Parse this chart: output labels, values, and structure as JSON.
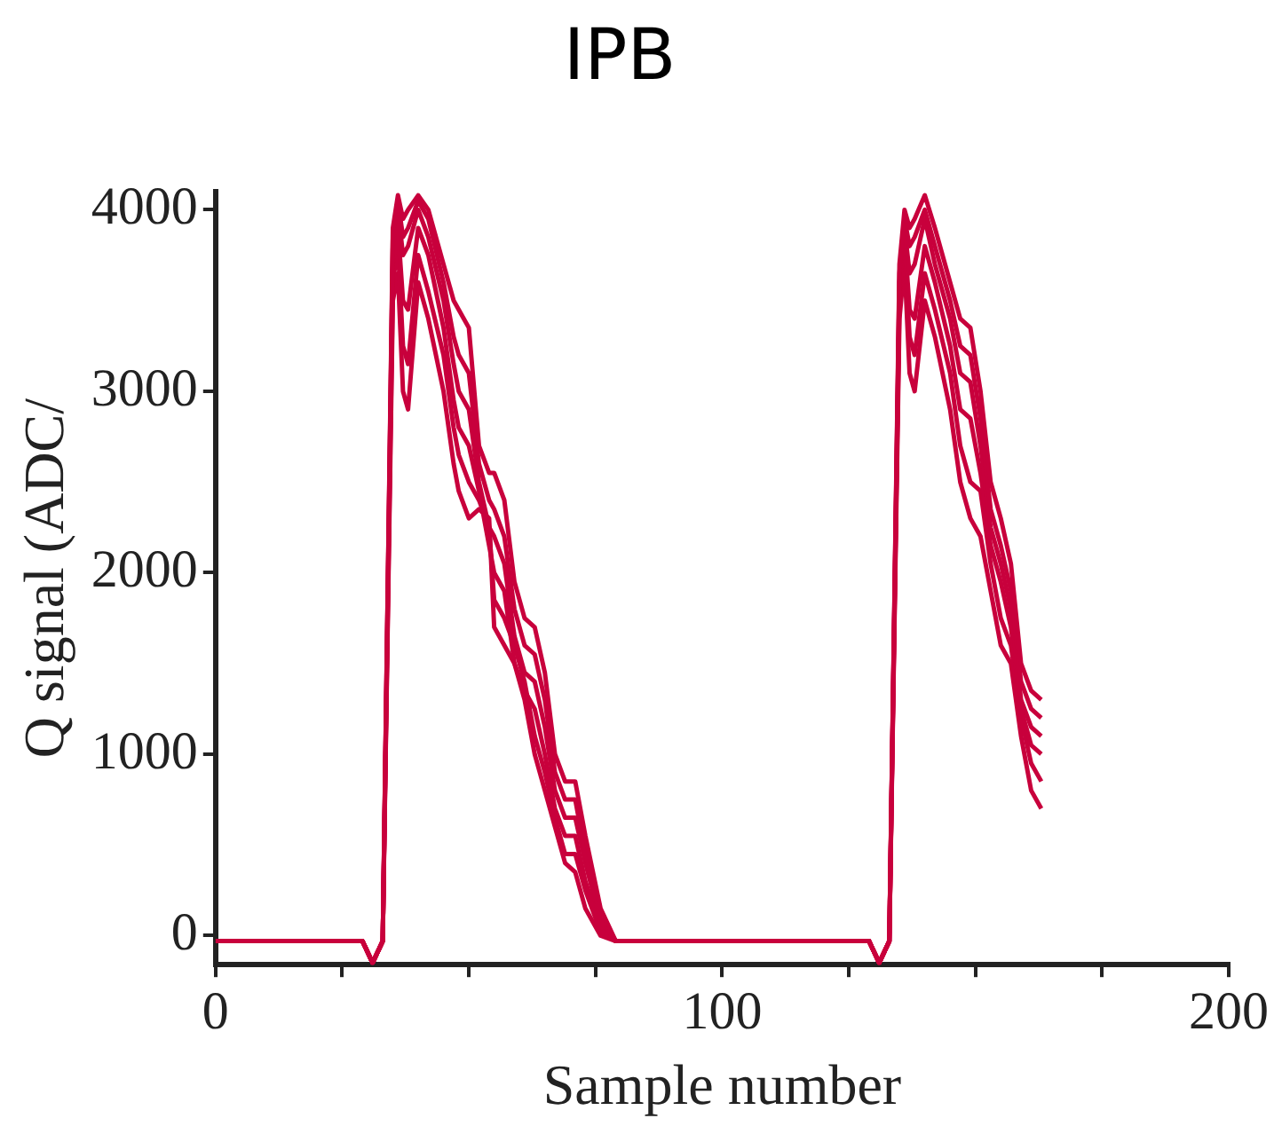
{
  "chart_data": {
    "type": "line",
    "title": "IPB",
    "xlabel": "Sample number",
    "ylabel": "Q signal (ADC/",
    "x": [
      0,
      29,
      31,
      33,
      35,
      36,
      37,
      38,
      40,
      42,
      45,
      47,
      48,
      50,
      52,
      54,
      55,
      57,
      59,
      61,
      63,
      65,
      67,
      69,
      71,
      73,
      76,
      79,
      129,
      131,
      133,
      135,
      136,
      137,
      138,
      140,
      142,
      145,
      147,
      149,
      151,
      153,
      155,
      157,
      159,
      161,
      163
    ],
    "series": [
      {
        "color": "#c8003c",
        "values": [
          -30,
          -30,
          -150,
          -30,
          3900,
          4080,
          3950,
          4000,
          4080,
          4000,
          3700,
          3500,
          3450,
          3350,
          2700,
          2550,
          2550,
          2400,
          1950,
          1750,
          1700,
          1450,
          1000,
          850,
          850,
          550,
          150,
          -30,
          -30,
          -150,
          -30,
          3700,
          4000,
          3900,
          3950,
          4080,
          3900,
          3600,
          3400,
          3350,
          3000,
          2500,
          2300,
          2050,
          1500,
          1350,
          1300
        ]
      },
      {
        "color": "#c8003c",
        "values": [
          -30,
          -30,
          -150,
          -30,
          3850,
          4050,
          3850,
          3900,
          4050,
          3950,
          3600,
          3300,
          3200,
          3100,
          2600,
          2400,
          2350,
          2200,
          1800,
          1600,
          1550,
          1300,
          900,
          750,
          750,
          450,
          100,
          -30,
          -30,
          -150,
          -30,
          3650,
          3950,
          3800,
          3850,
          4000,
          3800,
          3500,
          3250,
          3200,
          2850,
          2350,
          2150,
          1900,
          1400,
          1250,
          1200
        ]
      },
      {
        "color": "#c8003c",
        "values": [
          -30,
          -30,
          -150,
          -30,
          3800,
          4000,
          3750,
          3800,
          4000,
          3850,
          3500,
          3150,
          3000,
          2900,
          2500,
          2250,
          2200,
          2050,
          1650,
          1450,
          1400,
          1150,
          800,
          650,
          650,
          400,
          80,
          -30,
          -30,
          -150,
          -30,
          3600,
          3900,
          3650,
          3700,
          3950,
          3700,
          3400,
          3100,
          3050,
          2700,
          2250,
          2050,
          1800,
          1300,
          1150,
          1100
        ]
      },
      {
        "color": "#c8003c",
        "values": [
          -30,
          -30,
          -150,
          -30,
          3700,
          3900,
          3500,
          3450,
          3900,
          3750,
          3350,
          2950,
          2800,
          2700,
          2450,
          2150,
          2000,
          1900,
          1500,
          1350,
          1250,
          1000,
          700,
          550,
          550,
          300,
          50,
          -30,
          -30,
          -150,
          -30,
          3550,
          3850,
          3450,
          3400,
          3800,
          3600,
          3250,
          2900,
          2850,
          2550,
          2150,
          1950,
          1700,
          1250,
          1050,
          1000
        ]
      },
      {
        "color": "#c8003c",
        "values": [
          -30,
          -30,
          -150,
          -30,
          3600,
          3800,
          3250,
          3150,
          3750,
          3550,
          3200,
          2800,
          2650,
          2500,
          2400,
          2250,
          1850,
          1750,
          1600,
          1400,
          1100,
          900,
          650,
          450,
          450,
          250,
          20,
          -30,
          -30,
          -150,
          -30,
          3500,
          3800,
          3300,
          3200,
          3650,
          3450,
          3100,
          2700,
          2500,
          2450,
          2050,
          1750,
          1600,
          1200,
          950,
          850
        ]
      },
      {
        "color": "#c8003c",
        "values": [
          -30,
          -30,
          -150,
          -30,
          3500,
          3650,
          3000,
          2900,
          3600,
          3400,
          3000,
          2600,
          2450,
          2300,
          2350,
          2300,
          1700,
          1600,
          1500,
          1300,
          1000,
          800,
          600,
          400,
          350,
          150,
          0,
          -30,
          -30,
          -150,
          -30,
          3400,
          3700,
          3100,
          3000,
          3500,
          3300,
          2900,
          2500,
          2300,
          2200,
          1900,
          1600,
          1500,
          1100,
          800,
          700
        ]
      }
    ],
    "xlim": [
      0,
      200
    ],
    "xticks": [
      0,
      {
        "value": 25,
        "label": null
      },
      {
        "value": 50,
        "label": null
      },
      {
        "value": 75,
        "label": null
      },
      100,
      {
        "value": 125,
        "label": null
      },
      {
        "value": 150,
        "label": null
      },
      {
        "value": 175,
        "label": null
      },
      200
    ],
    "ylim": [
      -160,
      4100
    ],
    "yticks": [
      0,
      1000,
      2000,
      3000,
      4000
    ],
    "grid": false,
    "legend": false
  }
}
